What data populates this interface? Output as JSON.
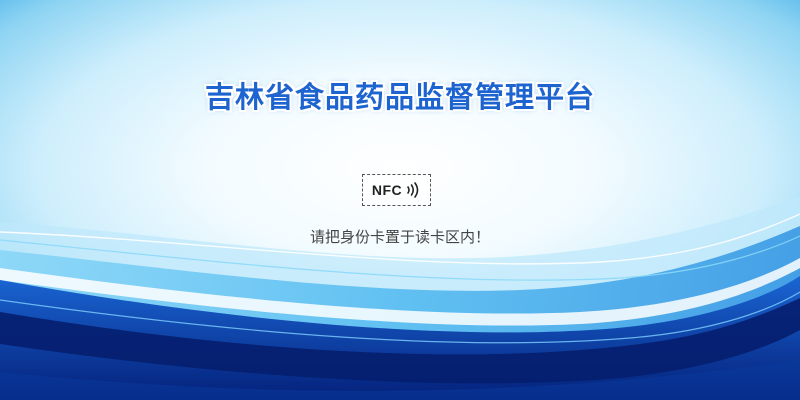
{
  "header": {
    "title": "吉林省食品药品监督管理平台"
  },
  "nfc": {
    "badge_label": "NFC",
    "icon": "nfc-waves-icon"
  },
  "instruction": {
    "text": "请把身份卡置于读卡区内！"
  },
  "colors": {
    "title": "#1e64d0",
    "wave_dark": "#0a2f8f",
    "wave_mid": "#1a66d4",
    "wave_light": "#4cc0f5"
  }
}
